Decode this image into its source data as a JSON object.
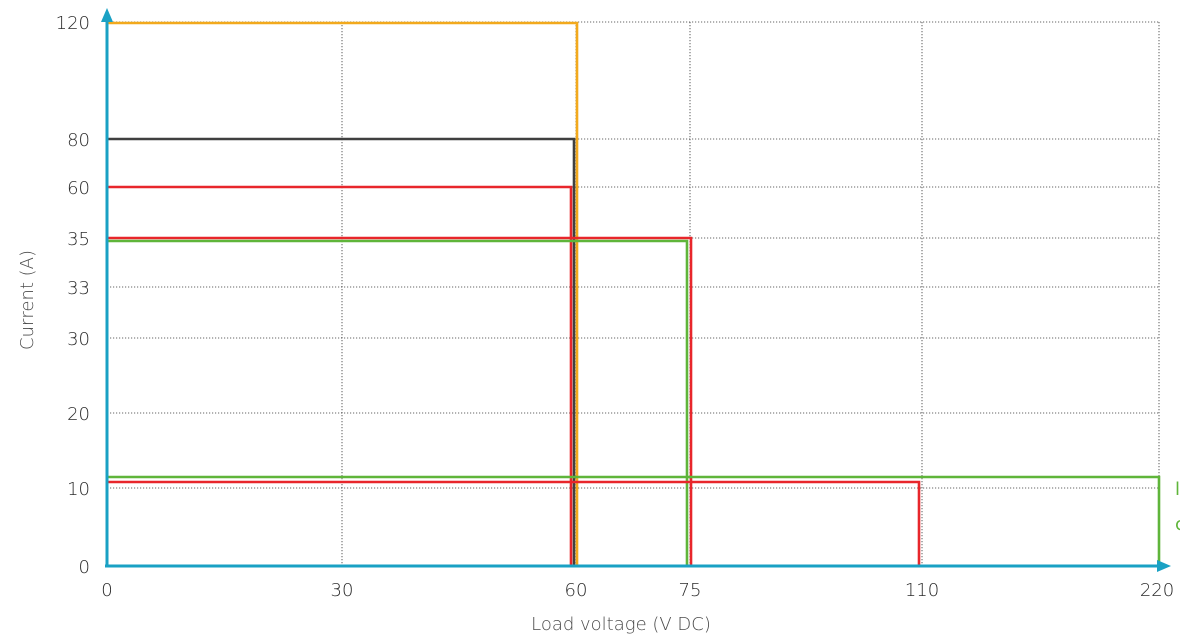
{
  "chart_data": {
    "type": "line",
    "title": "",
    "xlabel": "Load voltage (V DC)",
    "ylabel": "Current (A)",
    "x_ticks": [
      "0",
      "30",
      "60",
      "75",
      "110",
      "220"
    ],
    "y_ticks": [
      "0",
      "10",
      "20",
      "30",
      "33",
      "35",
      "60",
      "80",
      "120"
    ],
    "grid": true,
    "axis_color": "#1aa1c4",
    "series": [
      {
        "color": "#f2a91c",
        "points": [
          [
            "0",
            "120"
          ],
          [
            "60",
            "120"
          ],
          [
            "60",
            "0"
          ]
        ]
      },
      {
        "color": "#404040",
        "points": [
          [
            "0",
            "80"
          ],
          [
            "60",
            "80"
          ],
          [
            "60",
            "0"
          ]
        ]
      },
      {
        "color": "#e8262b",
        "points": [
          [
            "0",
            "60"
          ],
          [
            "60",
            "60"
          ],
          [
            "60",
            "0"
          ]
        ]
      },
      {
        "color": "#e8262b",
        "points": [
          [
            "0",
            "35"
          ],
          [
            "75",
            "35"
          ],
          [
            "75",
            "0"
          ]
        ]
      },
      {
        "color": "#5fb53a",
        "points": [
          [
            "0",
            "35"
          ],
          [
            "75",
            "35"
          ],
          [
            "75",
            "0"
          ]
        ]
      },
      {
        "color": "#e8262b",
        "points": [
          [
            "0",
            "10"
          ],
          [
            "110",
            "10"
          ],
          [
            "110",
            "0"
          ]
        ]
      },
      {
        "color": "#5fb53a",
        "points": [
          [
            "0",
            "10"
          ],
          [
            "220",
            "10"
          ],
          [
            "220",
            "0"
          ]
        ]
      }
    ],
    "cutoff_text": [
      "l",
      "c"
    ]
  }
}
